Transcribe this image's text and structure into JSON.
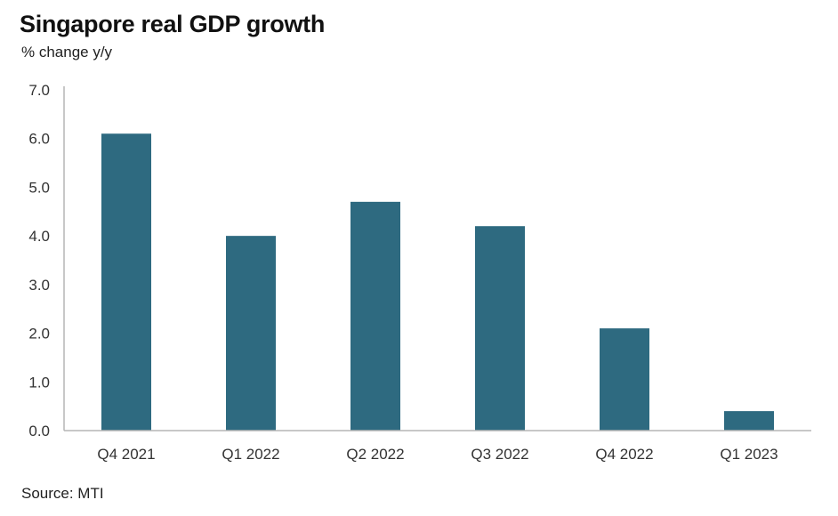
{
  "chart_data": {
    "type": "bar",
    "title": "Singapore real GDP growth",
    "subtitle": "% change y/y",
    "xlabel": "",
    "ylabel": "% change y/y",
    "categories": [
      "Q4 2021",
      "Q1 2022",
      "Q2 2022",
      "Q3 2022",
      "Q4 2022",
      "Q1 2023"
    ],
    "values": [
      6.1,
      4.0,
      4.7,
      4.2,
      2.1,
      0.4
    ],
    "ylim": [
      0,
      7
    ],
    "yticks": [
      "0.0",
      "1.0",
      "2.0",
      "3.0",
      "4.0",
      "5.0",
      "6.0",
      "7.0"
    ],
    "grid": false,
    "bar_color": "#2e6a80",
    "source": "Source: MTI"
  }
}
